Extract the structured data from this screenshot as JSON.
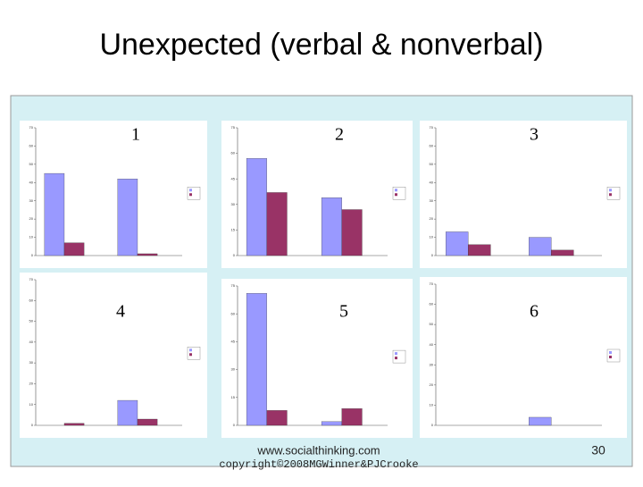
{
  "title": "Unexpected (verbal & nonverbal)",
  "footer": {
    "url": "www.socialthinking.com",
    "copyright": "copyright©2008MGWinner&PJCrooke",
    "page": "30"
  },
  "chart_data": [
    {
      "type": "bar",
      "label": "1",
      "ylim": [
        0,
        70
      ],
      "yticks": [
        0,
        10,
        20,
        30,
        40,
        50,
        60,
        70
      ],
      "series": [
        {
          "color": "#9999ff",
          "values": [
            45,
            42
          ]
        },
        {
          "color": "#993366",
          "values": [
            7,
            1
          ]
        }
      ]
    },
    {
      "type": "bar",
      "label": "2",
      "ylim": [
        0,
        75
      ],
      "yticks": [
        0,
        15,
        30,
        45,
        60,
        75
      ],
      "series": [
        {
          "color": "#9999ff",
          "values": [
            57,
            34
          ]
        },
        {
          "color": "#993366",
          "values": [
            37,
            27
          ]
        }
      ]
    },
    {
      "type": "bar",
      "label": "3",
      "ylim": [
        0,
        70
      ],
      "yticks": [
        0,
        10,
        20,
        30,
        40,
        50,
        60,
        70
      ],
      "series": [
        {
          "color": "#9999ff",
          "values": [
            13,
            10
          ]
        },
        {
          "color": "#993366",
          "values": [
            6,
            3
          ]
        }
      ]
    },
    {
      "type": "bar",
      "label": "4",
      "ylim": [
        0,
        70
      ],
      "yticks": [
        0,
        10,
        20,
        30,
        40,
        50,
        60,
        70
      ],
      "series": [
        {
          "color": "#9999ff",
          "values": [
            0,
            12
          ]
        },
        {
          "color": "#993366",
          "values": [
            1,
            3
          ]
        }
      ]
    },
    {
      "type": "bar",
      "label": "5",
      "ylim": [
        0,
        75
      ],
      "yticks": [
        0,
        15,
        30,
        45,
        60,
        75
      ],
      "series": [
        {
          "color": "#9999ff",
          "values": [
            71,
            2
          ]
        },
        {
          "color": "#993366",
          "values": [
            8,
            9
          ]
        }
      ]
    },
    {
      "type": "bar",
      "label": "6",
      "ylim": [
        0,
        70
      ],
      "yticks": [
        0,
        10,
        20,
        30,
        40,
        50,
        60,
        70
      ],
      "series": [
        {
          "color": "#9999ff",
          "values": [
            0,
            4
          ]
        },
        {
          "color": "#993366",
          "values": [
            0,
            0
          ]
        }
      ]
    }
  ]
}
